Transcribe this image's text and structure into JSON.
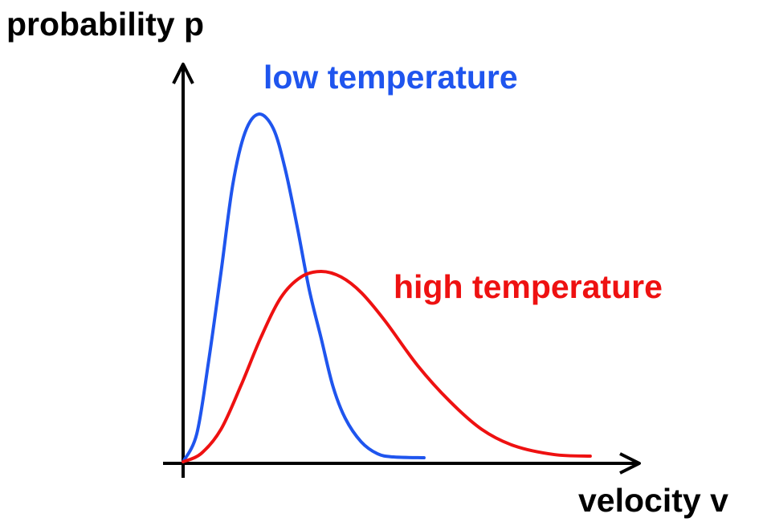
{
  "chart_data": {
    "type": "line",
    "title": "",
    "ylabel": "probability p",
    "xlabel": "velocity v",
    "xlim": [
      0,
      100
    ],
    "ylim": [
      0,
      100
    ],
    "grid": false,
    "series": [
      {
        "name": "low temperature",
        "color": "#1f55ee",
        "x": [
          0,
          3,
          5.6,
          8.3,
          10.9,
          13.6,
          16.6,
          19.8,
          22.4,
          25,
          27.7,
          30.3,
          32.9,
          35.6,
          39.1,
          42.7,
          46.2,
          52.9
        ],
        "y": [
          0.4,
          7.4,
          25.6,
          47.7,
          69.8,
          82.9,
          87.5,
          83.9,
          73.8,
          59.6,
          43.5,
          31.4,
          19.3,
          11.3,
          5.4,
          2.4,
          1.6,
          1.4
        ]
      },
      {
        "name": "high temperature",
        "color": "#ee1111",
        "x": [
          0,
          3.9,
          8.3,
          12.7,
          17.1,
          21.5,
          25.9,
          30.3,
          34.7,
          39.2,
          44.4,
          51.5,
          58.6,
          65.6,
          72.7,
          81.5,
          89.4
        ],
        "y": [
          0.4,
          2.4,
          8.5,
          19.5,
          31.6,
          41.6,
          46.7,
          48.1,
          46.7,
          42.7,
          35.6,
          24.5,
          15.5,
          8.5,
          4.4,
          2.2,
          1.8
        ]
      }
    ]
  }
}
